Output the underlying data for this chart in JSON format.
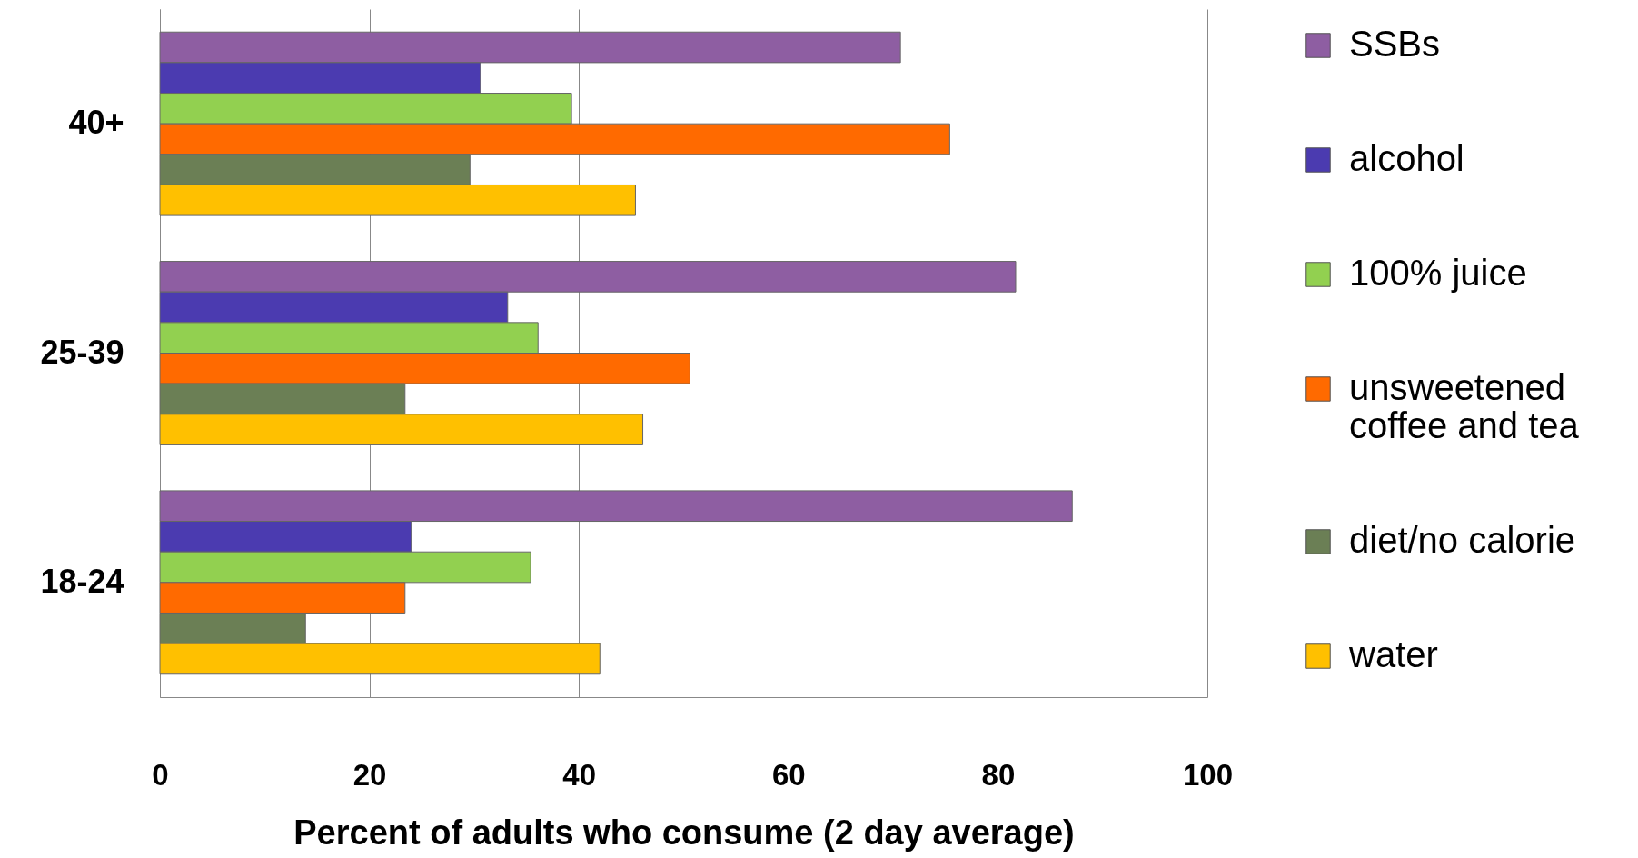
{
  "chart_data": {
    "type": "bar",
    "orientation": "horizontal",
    "categories": [
      "40+",
      "25-39",
      "18-24"
    ],
    "series": [
      {
        "name": "SSBs",
        "color": "#8e5ea2",
        "values": [
          70.7,
          81.7,
          87.1
        ]
      },
      {
        "name": "alcohol",
        "color": "#4b3bb0",
        "values": [
          30.6,
          33.2,
          24.0
        ]
      },
      {
        "name": "100% juice",
        "color": "#92d050",
        "values": [
          39.3,
          36.1,
          35.4
        ]
      },
      {
        "name": "unsweetened coffee and tea",
        "color": "#ff6a00",
        "values": [
          75.4,
          50.6,
          23.4
        ]
      },
      {
        "name": "diet/no calorie",
        "color": "#6b7f55",
        "values": [
          29.6,
          23.4,
          13.9
        ]
      },
      {
        "name": "water",
        "color": "#ffc000",
        "values": [
          45.4,
          46.1,
          42.0
        ]
      }
    ],
    "xlabel": "Percent of adults who consume (2 day average)",
    "xlim": [
      0,
      100
    ],
    "xticks": [
      0,
      20,
      40,
      60,
      80,
      100
    ],
    "grid": "x",
    "legend": "right"
  }
}
